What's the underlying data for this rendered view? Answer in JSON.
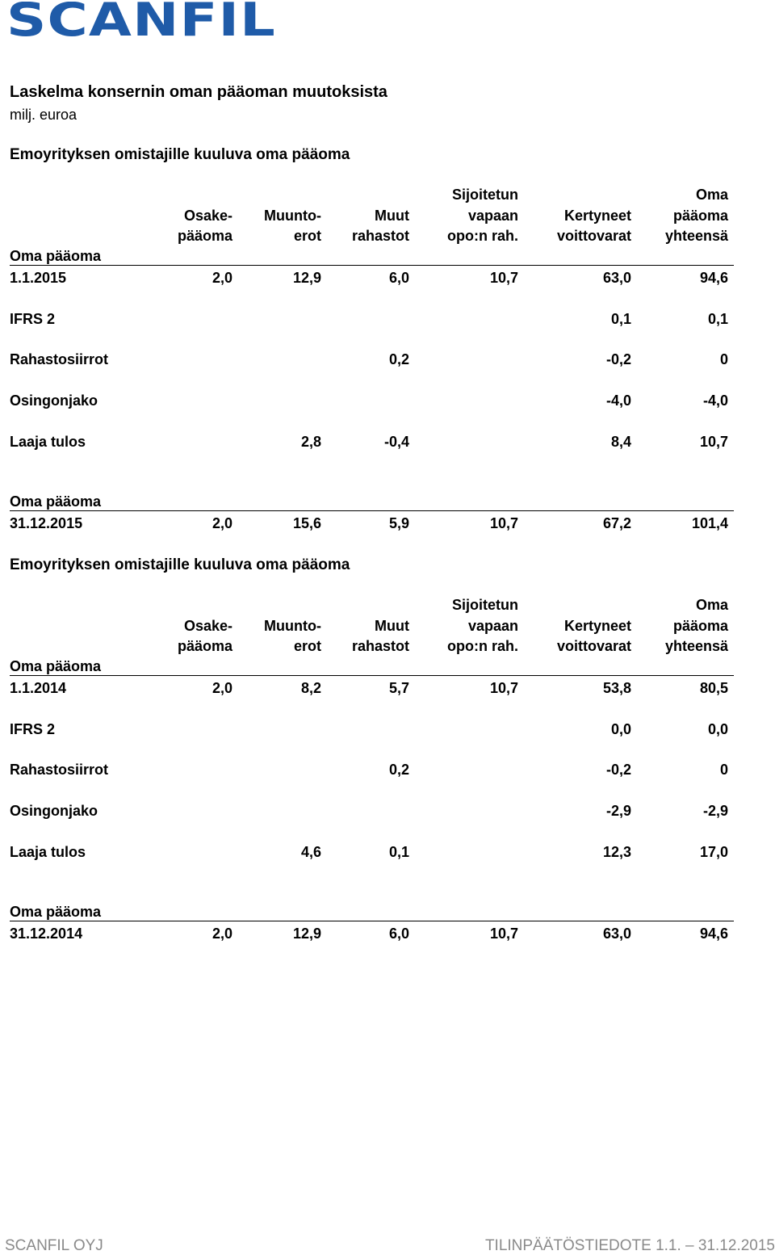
{
  "header": {
    "logo_text": "SCANFIL",
    "logo_color": "#1f5ba8"
  },
  "title": "Laskelma konsernin oman pääoman muutoksista",
  "unit": "milj. euroa",
  "columns": [
    {
      "lines": [
        "",
        "Osake-",
        "pääoma"
      ]
    },
    {
      "lines": [
        "",
        "Muunto-",
        "erot"
      ]
    },
    {
      "lines": [
        "",
        "Muut",
        "rahastot"
      ]
    },
    {
      "lines": [
        "Sijoitetun",
        "vapaan",
        "opo:n rah."
      ]
    },
    {
      "lines": [
        "",
        "Kertyneet",
        "voittovarat"
      ]
    },
    {
      "lines": [
        "Oma",
        "pääoma",
        "yhteensä"
      ]
    }
  ],
  "sections": [
    {
      "title": "Emoyrityksen omistajille kuuluva oma pääoma",
      "opening_label": "Oma pääoma",
      "opening_date": "1.1.2015",
      "opening_values": [
        "2,0",
        "12,9",
        "6,0",
        "10,7",
        "63,0",
        "94,6"
      ],
      "rows": [
        {
          "label": "IFRS 2",
          "values": [
            "",
            "",
            "",
            "",
            "0,1",
            "0,1"
          ]
        },
        {
          "label": "Rahastosiirrot",
          "values": [
            "",
            "",
            "0,2",
            "",
            "-0,2",
            "0"
          ]
        },
        {
          "label": "Osingonjako",
          "values": [
            "",
            "",
            "",
            "",
            "-4,0",
            "-4,0"
          ]
        },
        {
          "label": "Laaja tulos",
          "values": [
            "",
            "2,8",
            "-0,4",
            "",
            "8,4",
            "10,7"
          ]
        }
      ],
      "closing_label": "Oma pääoma",
      "closing_date": "31.12.2015",
      "closing_values": [
        "2,0",
        "15,6",
        "5,9",
        "10,7",
        "67,2",
        "101,4"
      ]
    },
    {
      "title": "Emoyrityksen omistajille kuuluva oma pääoma",
      "opening_label": "Oma pääoma",
      "opening_date": "1.1.2014",
      "opening_values": [
        "2,0",
        "8,2",
        "5,7",
        "10,7",
        "53,8",
        "80,5"
      ],
      "rows": [
        {
          "label": "IFRS 2",
          "values": [
            "",
            "",
            "",
            "",
            "0,0",
            "0,0"
          ]
        },
        {
          "label": "Rahastosiirrot",
          "values": [
            "",
            "",
            "0,2",
            "",
            "-0,2",
            "0"
          ]
        },
        {
          "label": "Osingonjako",
          "values": [
            "",
            "",
            "",
            "",
            "-2,9",
            "-2,9"
          ]
        },
        {
          "label": "Laaja tulos",
          "values": [
            "",
            "4,6",
            "0,1",
            "",
            "12,3",
            "17,0"
          ]
        }
      ],
      "closing_label": "Oma pääoma",
      "closing_date": "31.12.2014",
      "closing_values": [
        "2,0",
        "12,9",
        "6,0",
        "10,7",
        "63,0",
        "94,6"
      ]
    }
  ],
  "footer": {
    "left": "SCANFIL OYJ",
    "right": "TILINPÄÄTÖSTIEDOTE 1.1. – 31.12.2015"
  }
}
